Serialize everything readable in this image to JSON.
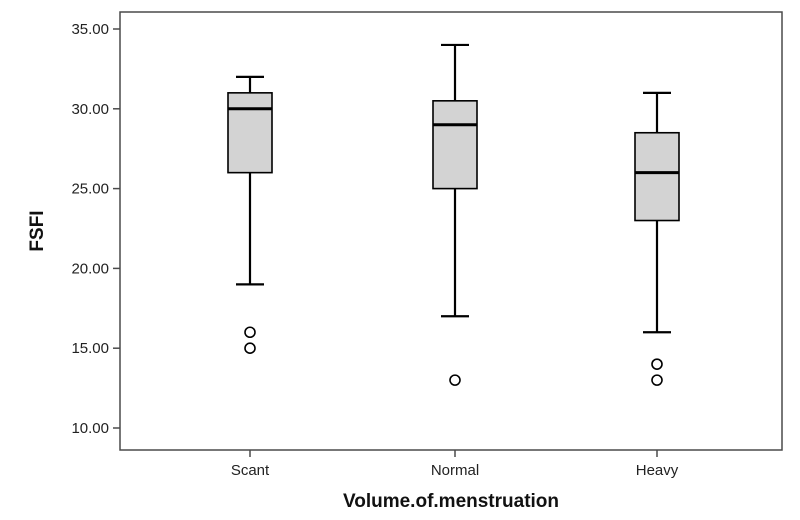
{
  "chart_data": {
    "type": "boxplot",
    "xlabel": "Volume.of.menstruation",
    "ylabel": "FSFI",
    "ylim": [
      8.5,
      36
    ],
    "yticks": [
      10,
      15,
      20,
      25,
      30,
      35
    ],
    "ytick_labels": [
      "10.00",
      "15.00",
      "20.00",
      "25.00",
      "30.00",
      "35.00"
    ],
    "grid": false,
    "categories": [
      "Scant",
      "Normal",
      "Heavy"
    ],
    "boxes": [
      {
        "category": "Scant",
        "whisker_low": 19,
        "q1": 26,
        "median": 30,
        "q3": 31,
        "whisker_high": 32,
        "outliers": [
          16,
          15
        ]
      },
      {
        "category": "Normal",
        "whisker_low": 17,
        "q1": 25,
        "median": 29,
        "q3": 30.5,
        "whisker_high": 34,
        "outliers": [
          13
        ]
      },
      {
        "category": "Heavy",
        "whisker_low": 16,
        "q1": 23,
        "median": 26,
        "q3": 28.5,
        "whisker_high": 31,
        "outliers": [
          14,
          13
        ]
      }
    ],
    "colors": {
      "box_fill": "#d3d3d3",
      "stroke": "#000000",
      "frame": "#4a4a4a"
    }
  }
}
